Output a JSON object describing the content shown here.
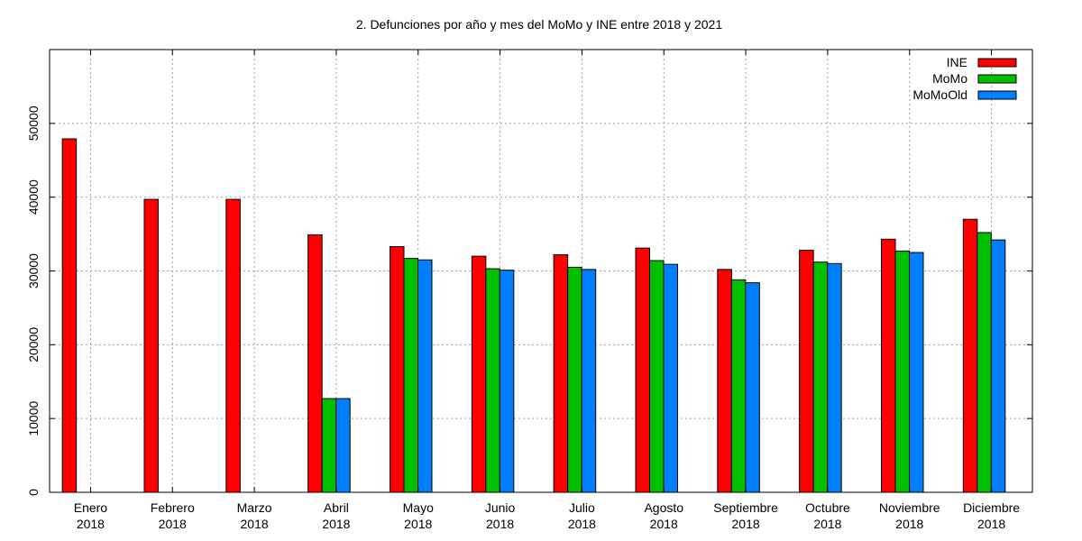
{
  "chart_data": {
    "type": "bar",
    "title": "2. Defunciones por año y mes del MoMo y INE entre 2018 y 2021",
    "xlabel": "",
    "ylabel": "",
    "ylim": [
      0,
      60000
    ],
    "yticks": [
      0,
      10000,
      20000,
      30000,
      40000,
      50000
    ],
    "grid": true,
    "legend": "top-right",
    "categories": [
      [
        "Enero",
        "2018"
      ],
      [
        "Febrero",
        "2018"
      ],
      [
        "Marzo",
        "2018"
      ],
      [
        "Abril",
        "2018"
      ],
      [
        "Mayo",
        "2018"
      ],
      [
        "Junio",
        "2018"
      ],
      [
        "Julio",
        "2018"
      ],
      [
        "Agosto",
        "2018"
      ],
      [
        "Septiembre",
        "2018"
      ],
      [
        "Octubre",
        "2018"
      ],
      [
        "Noviembre",
        "2018"
      ],
      [
        "Diciembre",
        "2018"
      ]
    ],
    "series": [
      {
        "name": "INE",
        "color": "#ff0000",
        "values": [
          47900,
          39700,
          39700,
          34900,
          33300,
          32000,
          32200,
          33100,
          30200,
          32800,
          34300,
          37000
        ]
      },
      {
        "name": "MoMo",
        "color": "#00c000",
        "values": [
          null,
          null,
          null,
          12700,
          31700,
          30300,
          30500,
          31400,
          28800,
          31200,
          32700,
          35200
        ]
      },
      {
        "name": "MoMoOld",
        "color": "#0080ff",
        "values": [
          null,
          null,
          null,
          12700,
          31500,
          30100,
          30200,
          30900,
          28400,
          31000,
          32500,
          34200
        ]
      }
    ]
  }
}
